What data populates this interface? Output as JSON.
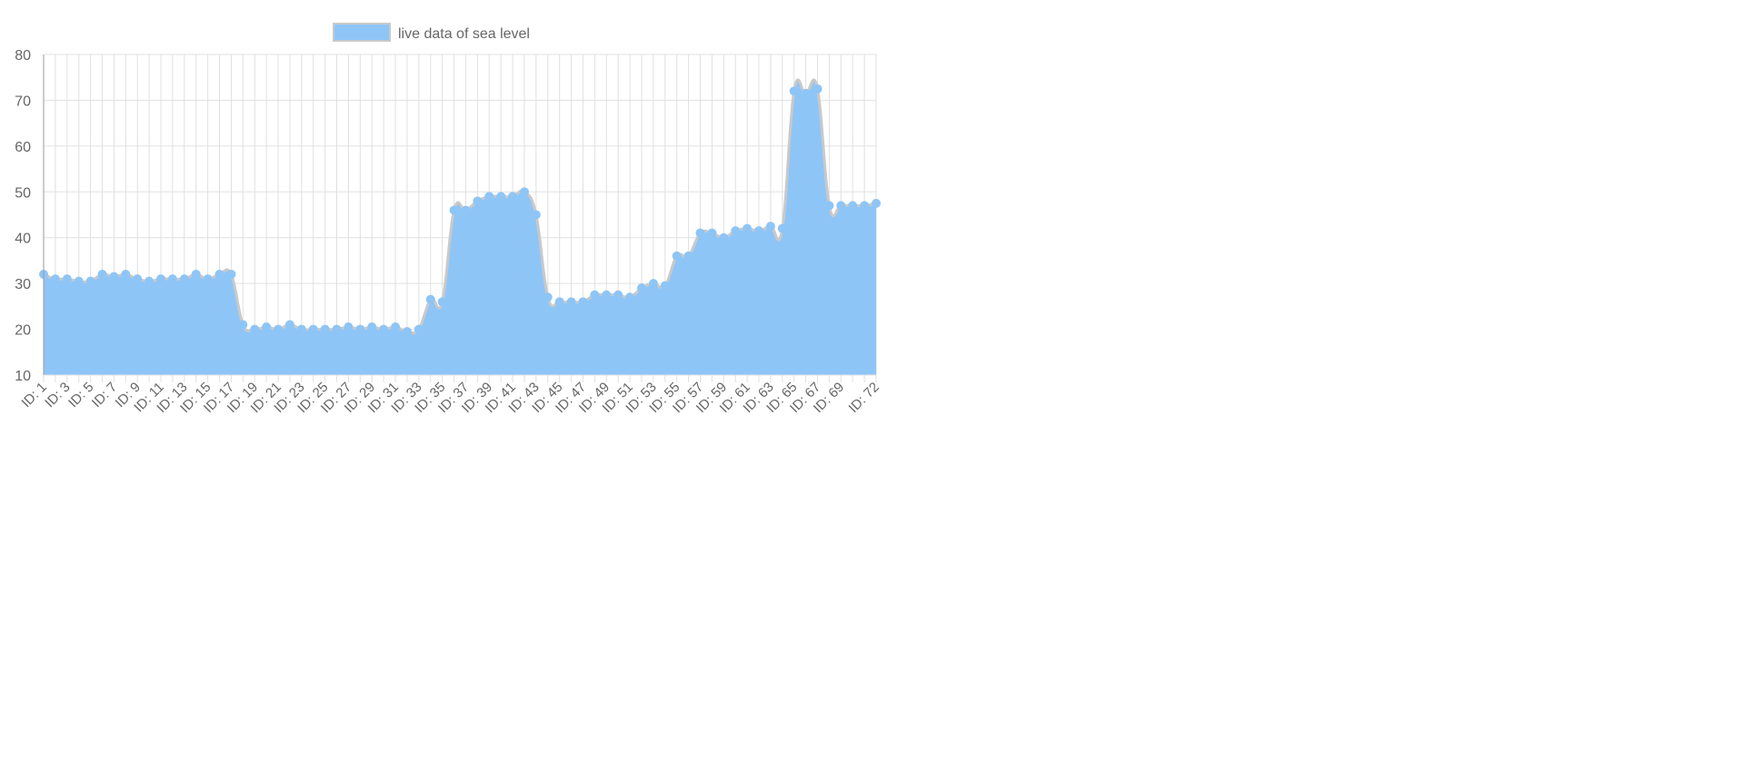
{
  "chart_data": {
    "type": "area",
    "legend": {
      "position": "top",
      "label": "live data of sea level"
    },
    "colors": {
      "fill": "#8ec5f7",
      "line": "#c9c9c9",
      "point": "#8ec5f7",
      "grid": "#e0e0e0",
      "axis": "#999999",
      "text": "#666666"
    },
    "ylim": [
      10,
      80
    ],
    "y_ticks": [
      10,
      20,
      30,
      40,
      50,
      60,
      70,
      80
    ],
    "grid": true,
    "x_labels_shown": [
      "ID: 1",
      "ID: 3",
      "ID: 5",
      "ID: 7",
      "ID: 9",
      "ID: 11",
      "ID: 13",
      "ID: 15",
      "ID: 17",
      "ID: 19",
      "ID: 21",
      "ID: 23",
      "ID: 25",
      "ID: 27",
      "ID: 29",
      "ID: 31",
      "ID: 33",
      "ID: 35",
      "ID: 37",
      "ID: 39",
      "ID: 41",
      "ID: 43",
      "ID: 45",
      "ID: 47",
      "ID: 49",
      "ID: 51",
      "ID: 53",
      "ID: 55",
      "ID: 57",
      "ID: 59",
      "ID: 61",
      "ID: 63",
      "ID: 65",
      "ID: 67",
      "ID: 69",
      "ID: 72"
    ],
    "series": [
      {
        "values": [
          32,
          31,
          31,
          30.5,
          30.5,
          32,
          31.5,
          32,
          31,
          30.5,
          31,
          31,
          31,
          32,
          31,
          32,
          32,
          21,
          20,
          20.5,
          20,
          21,
          20,
          20,
          20,
          20,
          20.5,
          20,
          20.5,
          20,
          20.5,
          19.5,
          20,
          26.5,
          26,
          46,
          46,
          48,
          49,
          49,
          49,
          50,
          45,
          27,
          26,
          26,
          26,
          27.5,
          27.5,
          27.5,
          27,
          29,
          30,
          29.5,
          36,
          36,
          41,
          41,
          40,
          41.5,
          42,
          41.5,
          42.5,
          42,
          72,
          71.5,
          72.5,
          47,
          47,
          47,
          47,
          47.5
        ]
      }
    ]
  }
}
